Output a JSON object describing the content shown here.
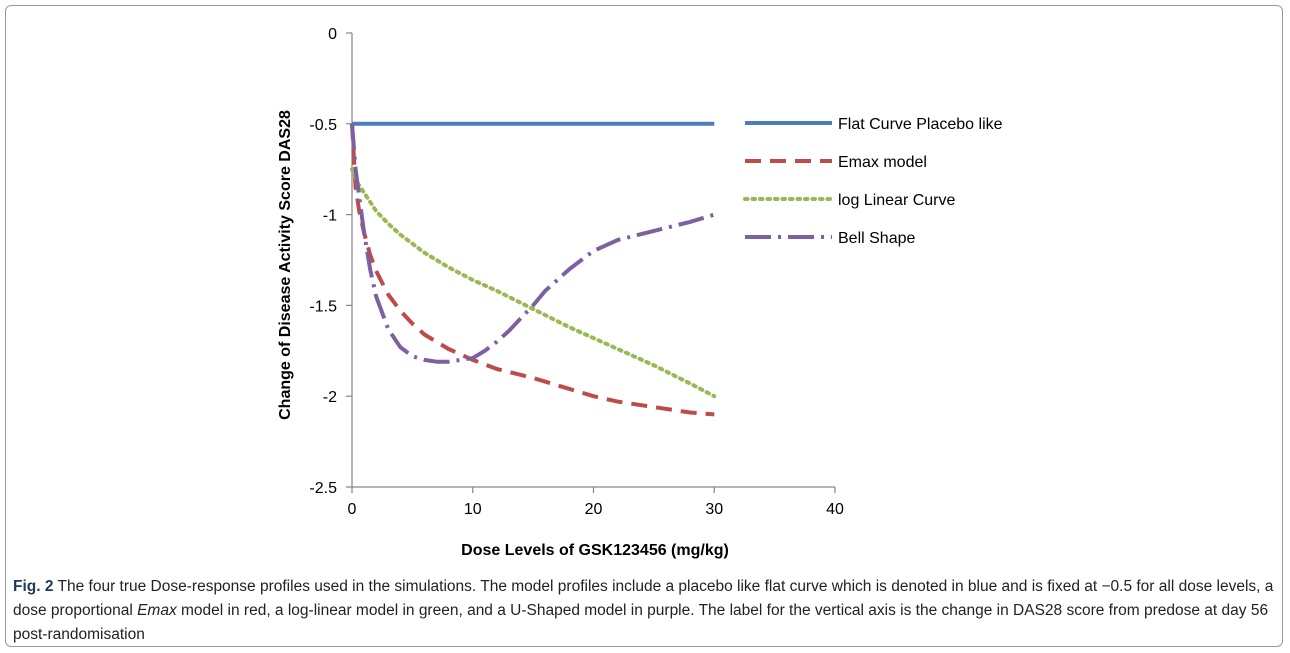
{
  "chart_data": {
    "type": "line",
    "title": "",
    "xlabel": "Dose Levels of GSK123456 (mg/kg)",
    "ylabel": "Change of Disease Activity Score DAS28",
    "xlim": [
      0,
      40
    ],
    "ylim": [
      -2.5,
      0
    ],
    "xticks": [
      0,
      10,
      20,
      30,
      40
    ],
    "yticks": [
      0,
      -0.5,
      -1,
      -1.5,
      -2,
      -2.5
    ],
    "xtick_labels": [
      "0",
      "10",
      "20",
      "30",
      "40"
    ],
    "ytick_labels": [
      "0",
      "-0.5",
      "-1",
      "-1.5",
      "-2",
      "-2.5"
    ],
    "grid": false,
    "legend_position": "right",
    "series": [
      {
        "name": "Flat Curve Placebo like",
        "color": "#4a7ebb",
        "style": "solid",
        "x": [
          0,
          30
        ],
        "y": [
          -0.5,
          -0.5
        ]
      },
      {
        "name": "Emax model",
        "color": "#be4b48",
        "style": "dashed",
        "x": [
          0,
          0.3,
          0.6,
          1,
          1.5,
          2,
          3,
          4,
          5,
          6,
          8,
          10,
          12,
          15,
          18,
          20,
          22,
          25,
          28,
          30
        ],
        "y": [
          -0.5,
          -0.85,
          -0.98,
          -1.1,
          -1.22,
          -1.31,
          -1.44,
          -1.53,
          -1.6,
          -1.66,
          -1.74,
          -1.8,
          -1.85,
          -1.9,
          -1.96,
          -2.0,
          -2.03,
          -2.06,
          -2.09,
          -2.1
        ]
      },
      {
        "name": "log Linear Curve",
        "color": "#98b954",
        "style": "dotted",
        "x": [
          0,
          0.5,
          1,
          2,
          3,
          4,
          5,
          6,
          8,
          10,
          12,
          15,
          18,
          20,
          22,
          25,
          28,
          30
        ],
        "y": [
          -0.75,
          -0.83,
          -0.88,
          -0.98,
          -1.05,
          -1.11,
          -1.16,
          -1.21,
          -1.29,
          -1.36,
          -1.42,
          -1.52,
          -1.62,
          -1.68,
          -1.74,
          -1.83,
          -1.93,
          -2.0
        ]
      },
      {
        "name": "Bell Shape",
        "color": "#7d60a0",
        "style": "dashdot",
        "x": [
          0,
          0.3,
          0.6,
          1,
          1.5,
          2,
          3,
          4,
          5,
          6,
          7,
          8,
          9,
          10,
          11,
          12,
          13,
          14,
          15,
          16,
          18,
          20,
          22,
          25,
          28,
          30
        ],
        "y": [
          -0.5,
          -0.75,
          -0.9,
          -1.1,
          -1.3,
          -1.45,
          -1.63,
          -1.73,
          -1.78,
          -1.8,
          -1.81,
          -1.81,
          -1.8,
          -1.79,
          -1.75,
          -1.7,
          -1.64,
          -1.57,
          -1.5,
          -1.42,
          -1.3,
          -1.2,
          -1.14,
          -1.09,
          -1.04,
          -1.0
        ]
      }
    ]
  },
  "caption": {
    "fig_label": "Fig. 2",
    "part1": "The four true Dose-response profiles used in the simulations. The model profiles include a placebo like flat curve which is denoted in blue and is fixed at −0.5 for all dose levels, a dose proportional ",
    "emph": "Emax",
    "part2": " model in red, a log-linear model in green, and a U-Shaped model in purple. The label for the vertical axis is the change in DAS28 score from predose at day 56 post-randomisation"
  }
}
